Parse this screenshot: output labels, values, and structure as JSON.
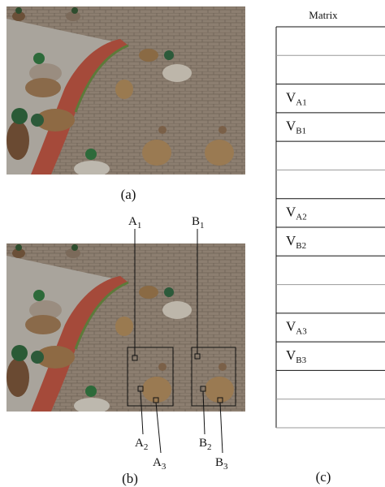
{
  "figure": {
    "panel_a_caption": "(a)",
    "panel_b_caption": "(b)",
    "panel_c_caption": "(c)",
    "matrix": {
      "title": "Matrix",
      "cells": [
        null,
        null,
        {
          "letter": "V",
          "sub": "A1"
        },
        {
          "letter": "V",
          "sub": "B1"
        },
        null,
        null,
        {
          "letter": "V",
          "sub": "A2"
        },
        {
          "letter": "V",
          "sub": "B2"
        },
        null,
        null,
        {
          "letter": "V",
          "sub": "A3"
        },
        {
          "letter": "V",
          "sub": "B3"
        },
        null,
        null
      ]
    },
    "annotations": [
      {
        "letter": "A",
        "sub": "1"
      },
      {
        "letter": "B",
        "sub": "1"
      },
      {
        "letter": "A",
        "sub": "2"
      },
      {
        "letter": "A",
        "sub": "3"
      },
      {
        "letter": "B",
        "sub": "2"
      },
      {
        "letter": "B",
        "sub": "3"
      }
    ]
  }
}
